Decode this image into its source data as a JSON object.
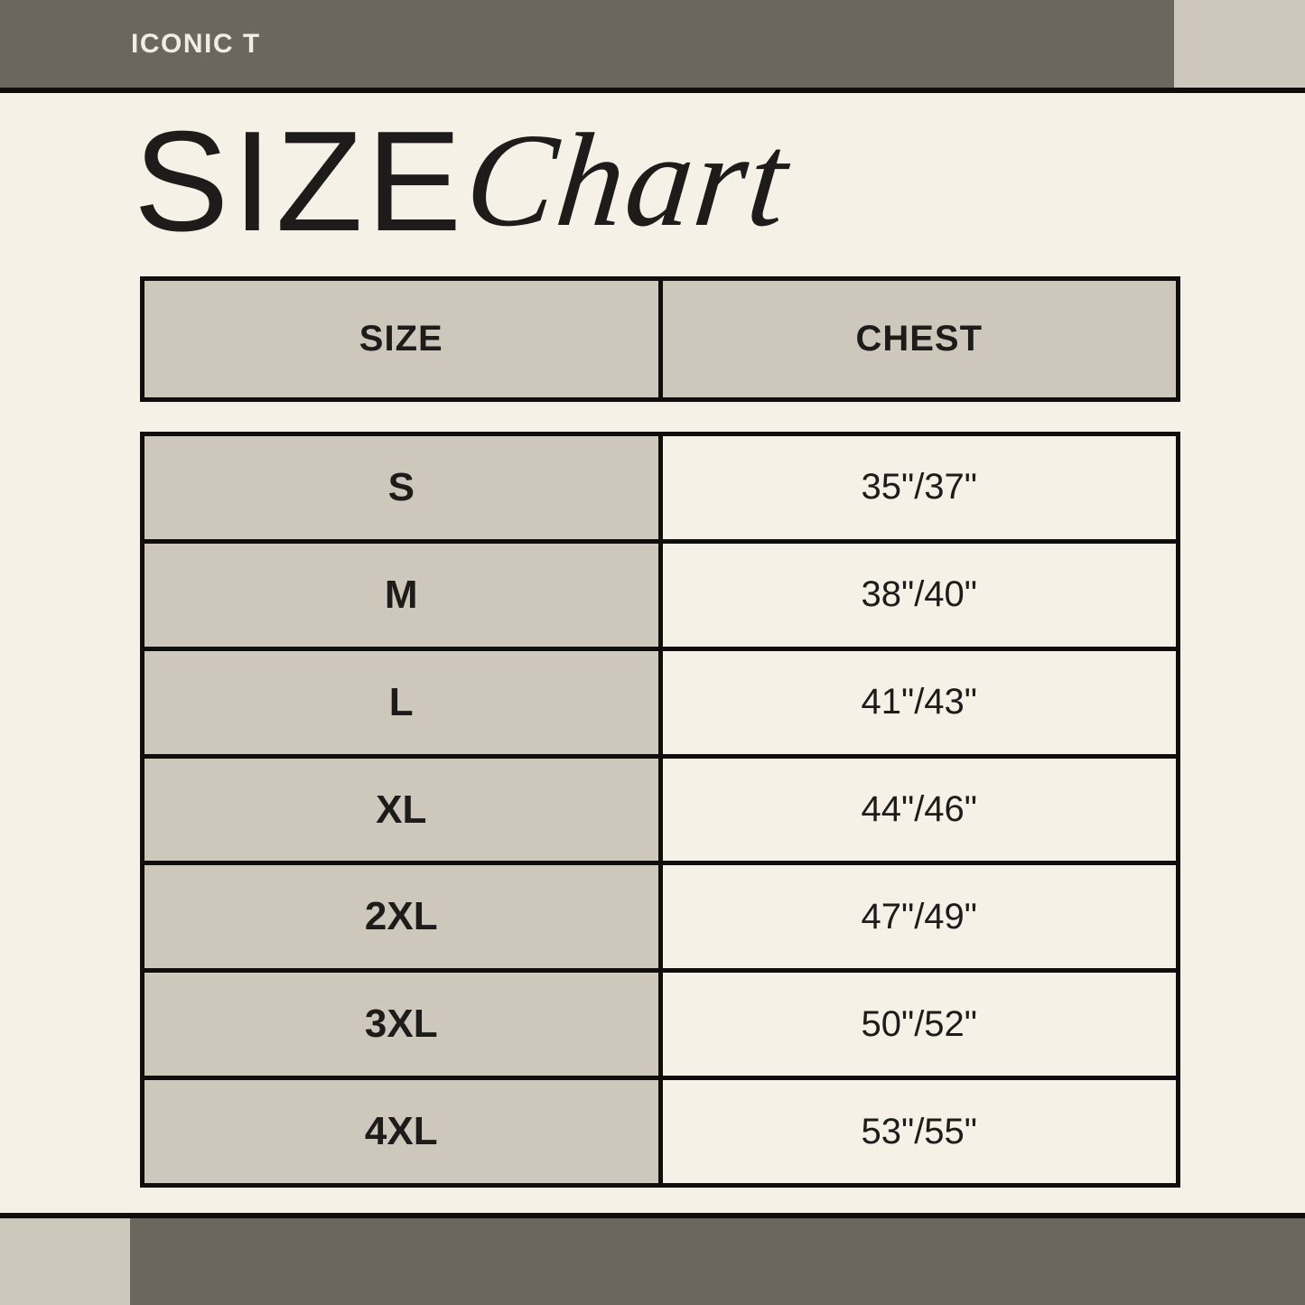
{
  "banner": {
    "brand": "ICONIC T"
  },
  "title": {
    "main": "SIZE",
    "script": "Chart"
  },
  "colors": {
    "bar_dark": "#6b675f",
    "block_tan": "#cec8bc",
    "background_cream": "#f5f1e6",
    "line_black": "#0f0e0c",
    "text_black": "#1d1c1a",
    "brand_text": "#f2ede1"
  },
  "chart_data": {
    "type": "table",
    "title": "SIZE Chart",
    "columns": [
      "SIZE",
      "CHEST"
    ],
    "rows": [
      {
        "size": "S",
        "chest": "35\"/37\""
      },
      {
        "size": "M",
        "chest": "38\"/40\""
      },
      {
        "size": "L",
        "chest": "41\"/43\""
      },
      {
        "size": "XL",
        "chest": "44\"/46\""
      },
      {
        "size": "2XL",
        "chest": "47\"/49\""
      },
      {
        "size": "3XL",
        "chest": "50\"/52\""
      },
      {
        "size": "4XL",
        "chest": "53\"/55\""
      }
    ]
  }
}
